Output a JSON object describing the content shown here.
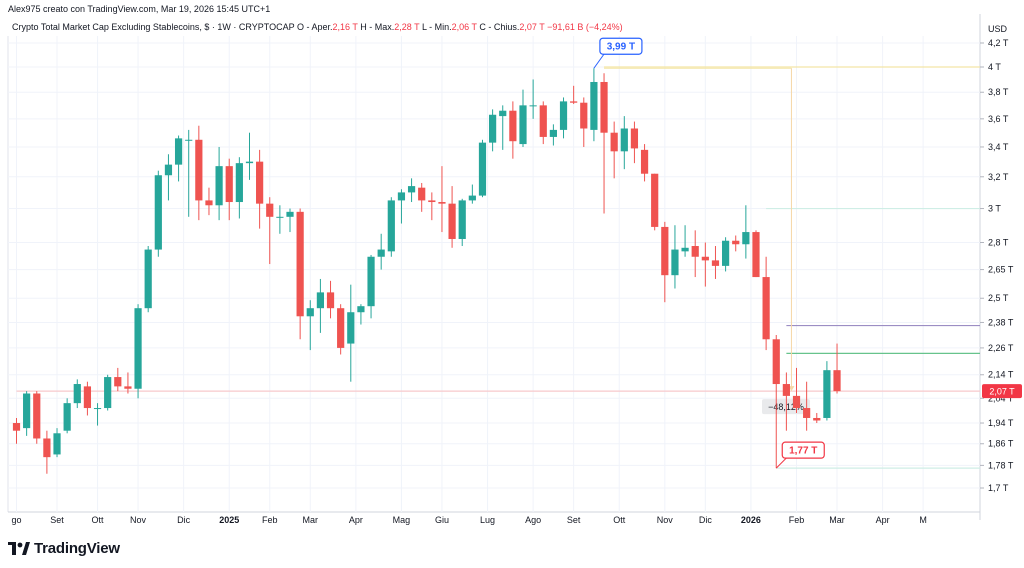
{
  "header": {
    "author_line": "Alex975 creato con TradingView.com, Mar 19, 2026 15:45 UTC+1"
  },
  "legend": {
    "symbol": "Crypto Total Market Cap Excluding Stablecoins, $ · 1W · CRYPTOCAP",
    "open_label": "O - Aper.",
    "open_value": "2,16 T",
    "high_label": "H - Max.",
    "high_value": "2,28 T",
    "low_label": "L - Min.",
    "low_value": "2,06 T",
    "close_label": "C - Chius.",
    "close_value": "2,07 T",
    "change_value": "−91,61 B (−4,24%)"
  },
  "chart_data": {
    "type": "candlestick",
    "currency_label": "USD",
    "y_axis_scale": "log",
    "y_ticks": [
      "4,2 T",
      "4 T",
      "3,8 T",
      "3,6 T",
      "3,4 T",
      "3,2 T",
      "3 T",
      "2,8 T",
      "2,65 T",
      "2,5 T",
      "2,38 T",
      "2,26 T",
      "2,14 T",
      "2,04 T",
      "1,94 T",
      "1,86 T",
      "1,78 T",
      "1,7 T"
    ],
    "y_tick_values": [
      4.2,
      4.0,
      3.8,
      3.6,
      3.4,
      3.2,
      3.0,
      2.8,
      2.65,
      2.5,
      2.38,
      2.26,
      2.14,
      2.04,
      1.94,
      1.86,
      1.78,
      1.7
    ],
    "x_ticks": [
      "go",
      "Set",
      "Ott",
      "Nov",
      "Dic",
      "2025",
      "Feb",
      "Mar",
      "Apr",
      "Mag",
      "Giu",
      "Lug",
      "Ago",
      "Set",
      "Ott",
      "Nov",
      "Dic",
      "2026",
      "Feb",
      "Mar",
      "Apr",
      "M"
    ],
    "x_tick_week_index": [
      0,
      4,
      8,
      12,
      16.5,
      21,
      25,
      29,
      33.5,
      38,
      42,
      46.5,
      51,
      55,
      59.5,
      64,
      68,
      72.5,
      77,
      81,
      85.5,
      89.5
    ],
    "bold_x_ticks": [
      "2025",
      "2026"
    ],
    "candles": [
      {
        "o": 1.94,
        "h": 1.96,
        "l": 1.86,
        "c": 1.91
      },
      {
        "o": 1.92,
        "h": 2.07,
        "l": 1.89,
        "c": 2.06
      },
      {
        "o": 2.06,
        "h": 2.07,
        "l": 1.86,
        "c": 1.88
      },
      {
        "o": 1.88,
        "h": 1.91,
        "l": 1.75,
        "c": 1.81
      },
      {
        "o": 1.82,
        "h": 1.92,
        "l": 1.81,
        "c": 1.9
      },
      {
        "o": 1.91,
        "h": 2.04,
        "l": 1.9,
        "c": 2.02
      },
      {
        "o": 2.02,
        "h": 2.12,
        "l": 2.0,
        "c": 2.1
      },
      {
        "o": 2.09,
        "h": 2.11,
        "l": 1.97,
        "c": 2.0
      },
      {
        "o": 2.0,
        "h": 2.02,
        "l": 1.93,
        "c": 2.0
      },
      {
        "o": 2.0,
        "h": 2.14,
        "l": 1.99,
        "c": 2.13
      },
      {
        "o": 2.13,
        "h": 2.17,
        "l": 2.07,
        "c": 2.09
      },
      {
        "o": 2.09,
        "h": 2.15,
        "l": 2.06,
        "c": 2.08
      },
      {
        "o": 2.08,
        "h": 2.47,
        "l": 2.04,
        "c": 2.45
      },
      {
        "o": 2.45,
        "h": 2.78,
        "l": 2.43,
        "c": 2.76
      },
      {
        "o": 2.76,
        "h": 3.24,
        "l": 2.72,
        "c": 3.21
      },
      {
        "o": 3.21,
        "h": 3.35,
        "l": 3.05,
        "c": 3.28
      },
      {
        "o": 3.28,
        "h": 3.48,
        "l": 3.17,
        "c": 3.46
      },
      {
        "o": 3.45,
        "h": 3.52,
        "l": 2.95,
        "c": 3.45
      },
      {
        "o": 3.45,
        "h": 3.55,
        "l": 2.93,
        "c": 3.05
      },
      {
        "o": 3.05,
        "h": 3.13,
        "l": 2.96,
        "c": 3.02
      },
      {
        "o": 3.02,
        "h": 3.4,
        "l": 2.93,
        "c": 3.27
      },
      {
        "o": 3.27,
        "h": 3.32,
        "l": 2.93,
        "c": 3.04
      },
      {
        "o": 3.04,
        "h": 3.33,
        "l": 2.94,
        "c": 3.29
      },
      {
        "o": 3.29,
        "h": 3.5,
        "l": 3.18,
        "c": 3.3
      },
      {
        "o": 3.3,
        "h": 3.38,
        "l": 2.88,
        "c": 3.03
      },
      {
        "o": 3.03,
        "h": 3.07,
        "l": 2.68,
        "c": 2.95
      },
      {
        "o": 2.95,
        "h": 3.02,
        "l": 2.85,
        "c": 2.95
      },
      {
        "o": 2.95,
        "h": 3.0,
        "l": 2.86,
        "c": 2.98
      },
      {
        "o": 2.98,
        "h": 3.0,
        "l": 2.3,
        "c": 2.41
      },
      {
        "o": 2.41,
        "h": 2.49,
        "l": 2.25,
        "c": 2.45
      },
      {
        "o": 2.45,
        "h": 2.6,
        "l": 2.33,
        "c": 2.53
      },
      {
        "o": 2.53,
        "h": 2.59,
        "l": 2.4,
        "c": 2.45
      },
      {
        "o": 2.45,
        "h": 2.47,
        "l": 2.23,
        "c": 2.26
      },
      {
        "o": 2.28,
        "h": 2.57,
        "l": 2.11,
        "c": 2.43
      },
      {
        "o": 2.43,
        "h": 2.47,
        "l": 2.37,
        "c": 2.46
      },
      {
        "o": 2.46,
        "h": 2.73,
        "l": 2.4,
        "c": 2.72
      },
      {
        "o": 2.72,
        "h": 2.85,
        "l": 2.65,
        "c": 2.76
      },
      {
        "o": 2.75,
        "h": 3.07,
        "l": 2.72,
        "c": 3.05
      },
      {
        "o": 3.05,
        "h": 3.12,
        "l": 2.91,
        "c": 3.1
      },
      {
        "o": 3.1,
        "h": 3.19,
        "l": 3.04,
        "c": 3.14
      },
      {
        "o": 3.13,
        "h": 3.16,
        "l": 2.98,
        "c": 3.05
      },
      {
        "o": 3.05,
        "h": 3.1,
        "l": 2.93,
        "c": 3.04
      },
      {
        "o": 3.04,
        "h": 3.27,
        "l": 2.86,
        "c": 3.03
      },
      {
        "o": 3.03,
        "h": 3.14,
        "l": 2.77,
        "c": 2.82
      },
      {
        "o": 2.82,
        "h": 3.06,
        "l": 2.78,
        "c": 3.05
      },
      {
        "o": 3.05,
        "h": 3.15,
        "l": 3.03,
        "c": 3.08
      },
      {
        "o": 3.08,
        "h": 3.45,
        "l": 3.07,
        "c": 3.43
      },
      {
        "o": 3.43,
        "h": 3.67,
        "l": 3.37,
        "c": 3.63
      },
      {
        "o": 3.62,
        "h": 3.7,
        "l": 3.38,
        "c": 3.66
      },
      {
        "o": 3.66,
        "h": 3.73,
        "l": 3.32,
        "c": 3.44
      },
      {
        "o": 3.42,
        "h": 3.82,
        "l": 3.4,
        "c": 3.7
      },
      {
        "o": 3.7,
        "h": 3.9,
        "l": 3.6,
        "c": 3.7
      },
      {
        "o": 3.7,
        "h": 3.73,
        "l": 3.42,
        "c": 3.47
      },
      {
        "o": 3.47,
        "h": 3.56,
        "l": 3.41,
        "c": 3.52
      },
      {
        "o": 3.52,
        "h": 3.76,
        "l": 3.46,
        "c": 3.73
      },
      {
        "o": 3.73,
        "h": 3.85,
        "l": 3.71,
        "c": 3.72
      },
      {
        "o": 3.72,
        "h": 3.76,
        "l": 3.4,
        "c": 3.53
      },
      {
        "o": 3.52,
        "h": 3.99,
        "l": 3.44,
        "c": 3.88
      },
      {
        "o": 3.88,
        "h": 3.95,
        "l": 2.97,
        "c": 3.5
      },
      {
        "o": 3.5,
        "h": 3.58,
        "l": 3.19,
        "c": 3.37
      },
      {
        "o": 3.37,
        "h": 3.62,
        "l": 3.25,
        "c": 3.53
      },
      {
        "o": 3.53,
        "h": 3.58,
        "l": 3.29,
        "c": 3.39
      },
      {
        "o": 3.38,
        "h": 3.42,
        "l": 3.17,
        "c": 3.22
      },
      {
        "o": 3.22,
        "h": 3.22,
        "l": 2.87,
        "c": 2.89
      },
      {
        "o": 2.89,
        "h": 2.92,
        "l": 2.48,
        "c": 2.62
      },
      {
        "o": 2.62,
        "h": 2.9,
        "l": 2.55,
        "c": 2.76
      },
      {
        "o": 2.75,
        "h": 2.9,
        "l": 2.72,
        "c": 2.77
      },
      {
        "o": 2.78,
        "h": 2.87,
        "l": 2.61,
        "c": 2.72
      },
      {
        "o": 2.72,
        "h": 2.8,
        "l": 2.56,
        "c": 2.7
      },
      {
        "o": 2.7,
        "h": 2.78,
        "l": 2.6,
        "c": 2.67
      },
      {
        "o": 2.67,
        "h": 2.83,
        "l": 2.64,
        "c": 2.81
      },
      {
        "o": 2.81,
        "h": 2.84,
        "l": 2.75,
        "c": 2.79
      },
      {
        "o": 2.79,
        "h": 3.02,
        "l": 2.71,
        "c": 2.86
      },
      {
        "o": 2.86,
        "h": 2.87,
        "l": 2.61,
        "c": 2.61
      },
      {
        "o": 2.61,
        "h": 2.72,
        "l": 2.25,
        "c": 2.3
      },
      {
        "o": 2.3,
        "h": 2.32,
        "l": 1.77,
        "c": 2.1
      },
      {
        "o": 2.1,
        "h": 2.15,
        "l": 1.91,
        "c": 2.05
      },
      {
        "o": 2.05,
        "h": 2.17,
        "l": 1.98,
        "c": 2.0
      },
      {
        "o": 2.0,
        "h": 2.11,
        "l": 1.91,
        "c": 1.96
      },
      {
        "o": 1.96,
        "h": 1.98,
        "l": 1.94,
        "c": 1.95
      },
      {
        "o": 1.96,
        "h": 2.2,
        "l": 1.95,
        "c": 2.16
      },
      {
        "o": 2.16,
        "h": 2.28,
        "l": 2.06,
        "c": 2.07
      }
    ],
    "horizontal_levels": [
      {
        "value": 4.0,
        "color": "#f3e5a6",
        "from_week": 58
      },
      {
        "value": 3.0,
        "color": "#cfeee6",
        "from_week": 74
      },
      {
        "value": 2.365,
        "color": "#9c8ec4",
        "from_week": 76
      },
      {
        "value": 2.235,
        "color": "#67c38c",
        "from_week": 76
      },
      {
        "value": 2.07,
        "color": "#f7c9cc",
        "from_week": 0
      },
      {
        "value": 1.77,
        "color": "#cfeee6",
        "from_week": 75
      }
    ],
    "measure": {
      "label": "−48,12%",
      "from_value": 3.99,
      "to_value": 2.07
    },
    "callouts": [
      {
        "label": "3,99 T",
        "week": 57,
        "value": 3.99,
        "color": "#2962ff"
      },
      {
        "label": "1,77 T",
        "week": 75,
        "value": 1.77,
        "color": "#f23645"
      }
    ],
    "last_price": {
      "label": "2,07 T",
      "value": 2.07,
      "color": "#f23645"
    },
    "colors": {
      "up": "#26a69a",
      "down": "#ef5350"
    }
  },
  "branding": {
    "logo_text": "TradingView"
  }
}
